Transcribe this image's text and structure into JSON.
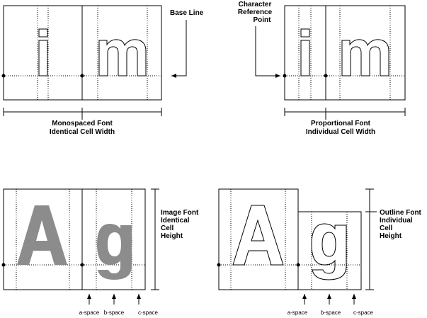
{
  "panels": {
    "monospaced": {
      "caption_line1": "Monospaced Font",
      "caption_line2": "Identical Cell Width",
      "glyphs": [
        "i",
        "m"
      ]
    },
    "proportional": {
      "caption_line1": "Proportional Font",
      "caption_line2": "Individual Cell Width",
      "glyphs": [
        "i",
        "m"
      ]
    },
    "image_font": {
      "label_lines": [
        "Image Font",
        "Identical",
        "Cell",
        "Height"
      ],
      "glyphs": [
        "A",
        "g"
      ],
      "space_labels": [
        "a-space",
        "b-space",
        "c-space"
      ]
    },
    "outline_font": {
      "label_lines": [
        "Outline Font",
        "Individual",
        "Cell",
        "Height"
      ],
      "glyphs": [
        "A",
        "g"
      ],
      "space_labels": [
        "a-space",
        "b-space",
        "c-space"
      ]
    }
  },
  "callouts": {
    "base_line": "Base Line",
    "char_ref_lines": [
      "Character",
      "Reference",
      "Point"
    ]
  },
  "colors": {
    "ink": "#000000",
    "image_glyph": "#8c8c8c",
    "background": "#ffffff"
  }
}
